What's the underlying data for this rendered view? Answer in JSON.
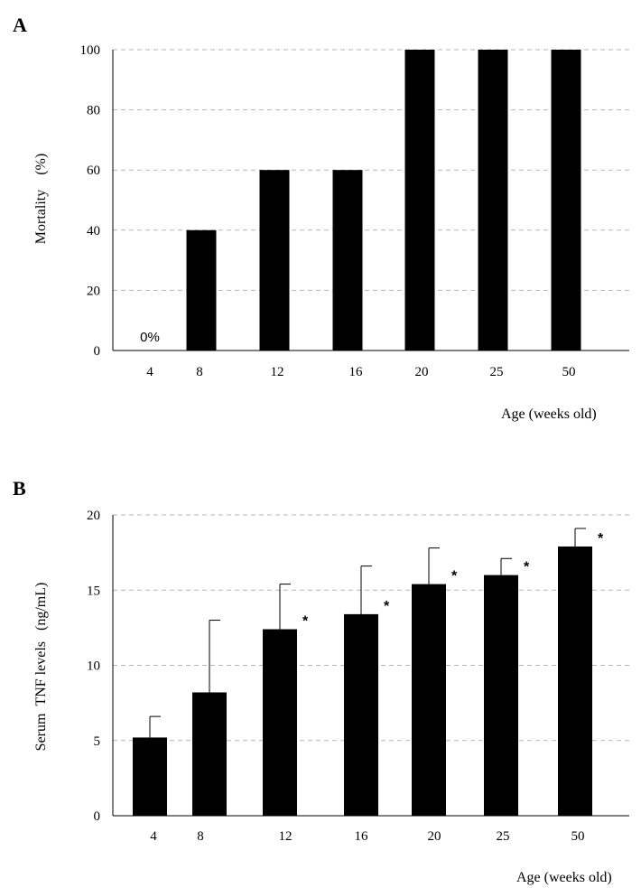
{
  "chart_data": [
    {
      "type": "bar",
      "panel": "A",
      "categories": [
        "4",
        "8",
        "12",
        "16",
        "20",
        "25",
        "50"
      ],
      "values": [
        0,
        40,
        60,
        60,
        100,
        100,
        100
      ],
      "ylabel": "Mortality    (%)",
      "xlabel": "Age (weeks old)",
      "ylim": [
        0,
        100
      ],
      "yticks": [
        0,
        20,
        40,
        60,
        80,
        100
      ],
      "grid": true,
      "annotations": [
        {
          "category": "4",
          "text": "0%"
        }
      ]
    },
    {
      "type": "bar",
      "panel": "B",
      "categories": [
        "4",
        "8",
        "12",
        "16",
        "20",
        "25",
        "50"
      ],
      "values": [
        5.2,
        8.2,
        12.4,
        13.4,
        15.4,
        16.0,
        17.9
      ],
      "errors": [
        1.4,
        4.8,
        3.0,
        3.2,
        2.4,
        1.1,
        1.2
      ],
      "significance": [
        "",
        "",
        "*",
        "*",
        "*",
        "*",
        "*"
      ],
      "ylabel": "Serum  TNF levels   (ng/mL)",
      "xlabel": "Age (weeks old)",
      "ylim": [
        0,
        20
      ],
      "yticks": [
        0,
        5,
        10,
        15,
        20
      ],
      "grid": true
    }
  ]
}
